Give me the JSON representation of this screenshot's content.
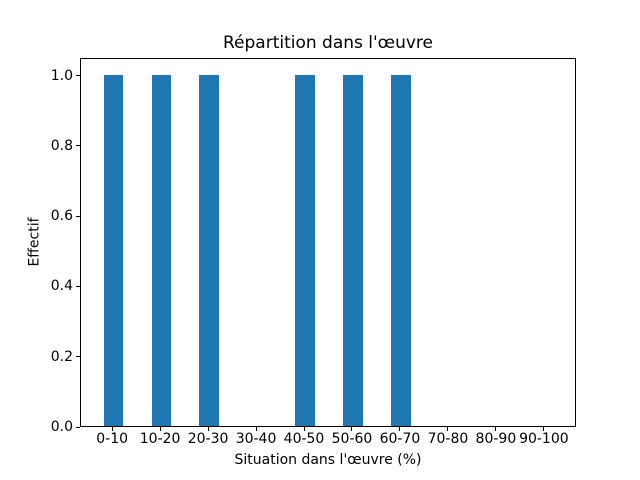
{
  "chart_data": {
    "type": "bar",
    "title": "Répartition dans l'œuvre",
    "xlabel": "Situation dans l'œuvre (%)",
    "ylabel": "Effectif",
    "categories": [
      "0-10",
      "10-20",
      "20-30",
      "30-40",
      "40-50",
      "50-60",
      "60-70",
      "70-80",
      "80-90",
      "90-100"
    ],
    "values": [
      1,
      1,
      1,
      0,
      1,
      1,
      1,
      0,
      0,
      0
    ],
    "ytick_values": [
      0.0,
      0.2,
      0.4,
      0.6,
      0.8,
      1.0
    ],
    "ytick_labels": [
      "0.0",
      "0.2",
      "0.4",
      "0.6",
      "0.8",
      "1.0"
    ],
    "ylim": [
      0,
      1.05
    ],
    "xlim": [
      -0.67,
      9.67
    ],
    "bar_rel_width": 0.4,
    "bar_color": "#1f77b4",
    "axis_color": "#000000",
    "grid": false,
    "legend_position": "none"
  }
}
